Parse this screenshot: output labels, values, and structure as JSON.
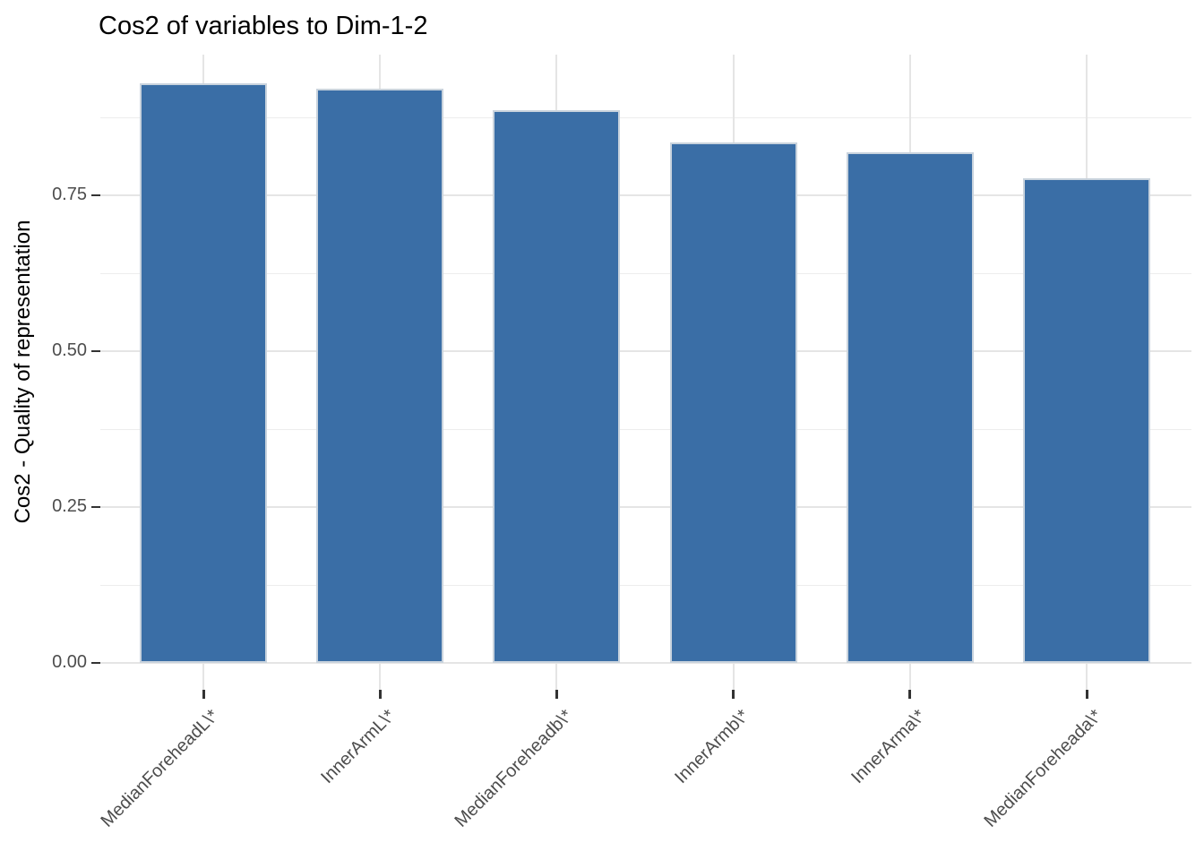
{
  "chart_data": {
    "type": "bar",
    "title": "Cos2 of variables to Dim-1-2",
    "xlabel": "",
    "ylabel": "Cos2 - Quality of representation",
    "categories": [
      "MedianForeheadL\\*",
      "InnerArmL\\*",
      "MedianForeheadb\\*",
      "InnerArmb\\*",
      "InnerArma\\*",
      "MedianForeheada\\*"
    ],
    "values": [
      0.93,
      0.922,
      0.887,
      0.835,
      0.82,
      0.777
    ],
    "ytick_values": [
      0.0,
      0.25,
      0.5,
      0.75
    ],
    "ytick_labels": [
      "0.00",
      "0.25",
      "0.50",
      "0.75"
    ],
    "yminor_values": [
      0.125,
      0.375,
      0.625,
      0.875
    ],
    "ylim": [
      -0.043,
      0.976
    ],
    "bar_color": "#3a6ea6",
    "bar_border_color": "#c9d3dd",
    "grid": true,
    "legend_position": "none",
    "x_label_rotation_deg": 45
  }
}
